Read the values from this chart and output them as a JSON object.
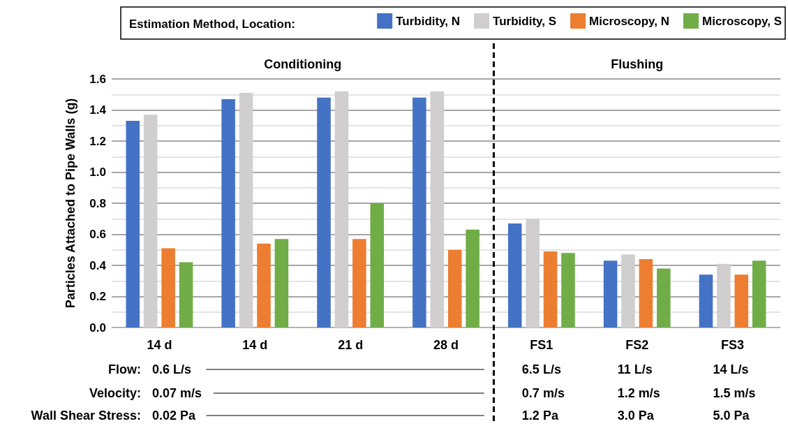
{
  "chart_data": {
    "type": "bar",
    "ylabel": "Particles Attached to Pipe Walls (g)",
    "legend_title": "Estimation Method, Location:",
    "categories": [
      "14 d",
      "14 d",
      "21 d",
      "28 d",
      "FS1",
      "FS2",
      "FS3"
    ],
    "series": [
      {
        "name": "Turbidity, N",
        "color": "#4472c4",
        "values": [
          1.33,
          1.47,
          1.48,
          1.48,
          0.67,
          0.43,
          0.34
        ]
      },
      {
        "name": "Turbidity, S",
        "color": "#d0cece",
        "values": [
          1.37,
          1.51,
          1.52,
          1.52,
          0.7,
          0.47,
          0.41
        ]
      },
      {
        "name": "Microscopy, N",
        "color": "#ed7d31",
        "values": [
          0.51,
          0.54,
          0.57,
          0.5,
          0.49,
          0.44,
          0.34
        ]
      },
      {
        "name": "Microscopy, S",
        "color": "#70ad47",
        "values": [
          0.42,
          0.57,
          0.8,
          0.63,
          0.48,
          0.38,
          0.43
        ]
      }
    ],
    "ylim": [
      0,
      1.6
    ],
    "yticks": [
      {
        "value": 0,
        "label": "0.0"
      },
      0.2,
      0.4,
      0.6,
      0.8,
      {
        "value": 1,
        "label": "1.0"
      },
      1.2,
      1.4,
      1.6
    ],
    "grid": "y",
    "legend": "top right",
    "annotations": [
      "Conditioning",
      "Flushing",
      "Flow:",
      "0.6 L/s",
      "6.5 L/s",
      "11 L/s",
      "14 L/s",
      "Velocity:",
      "0.07 m/s",
      "0.7 m/s",
      "1.2 m/s",
      "1.5 m/s",
      "Wall Shear Stress:",
      "0.02 Pa",
      "1.2 Pa",
      "3.0 Pa",
      "5.0 Pa"
    ]
  }
}
